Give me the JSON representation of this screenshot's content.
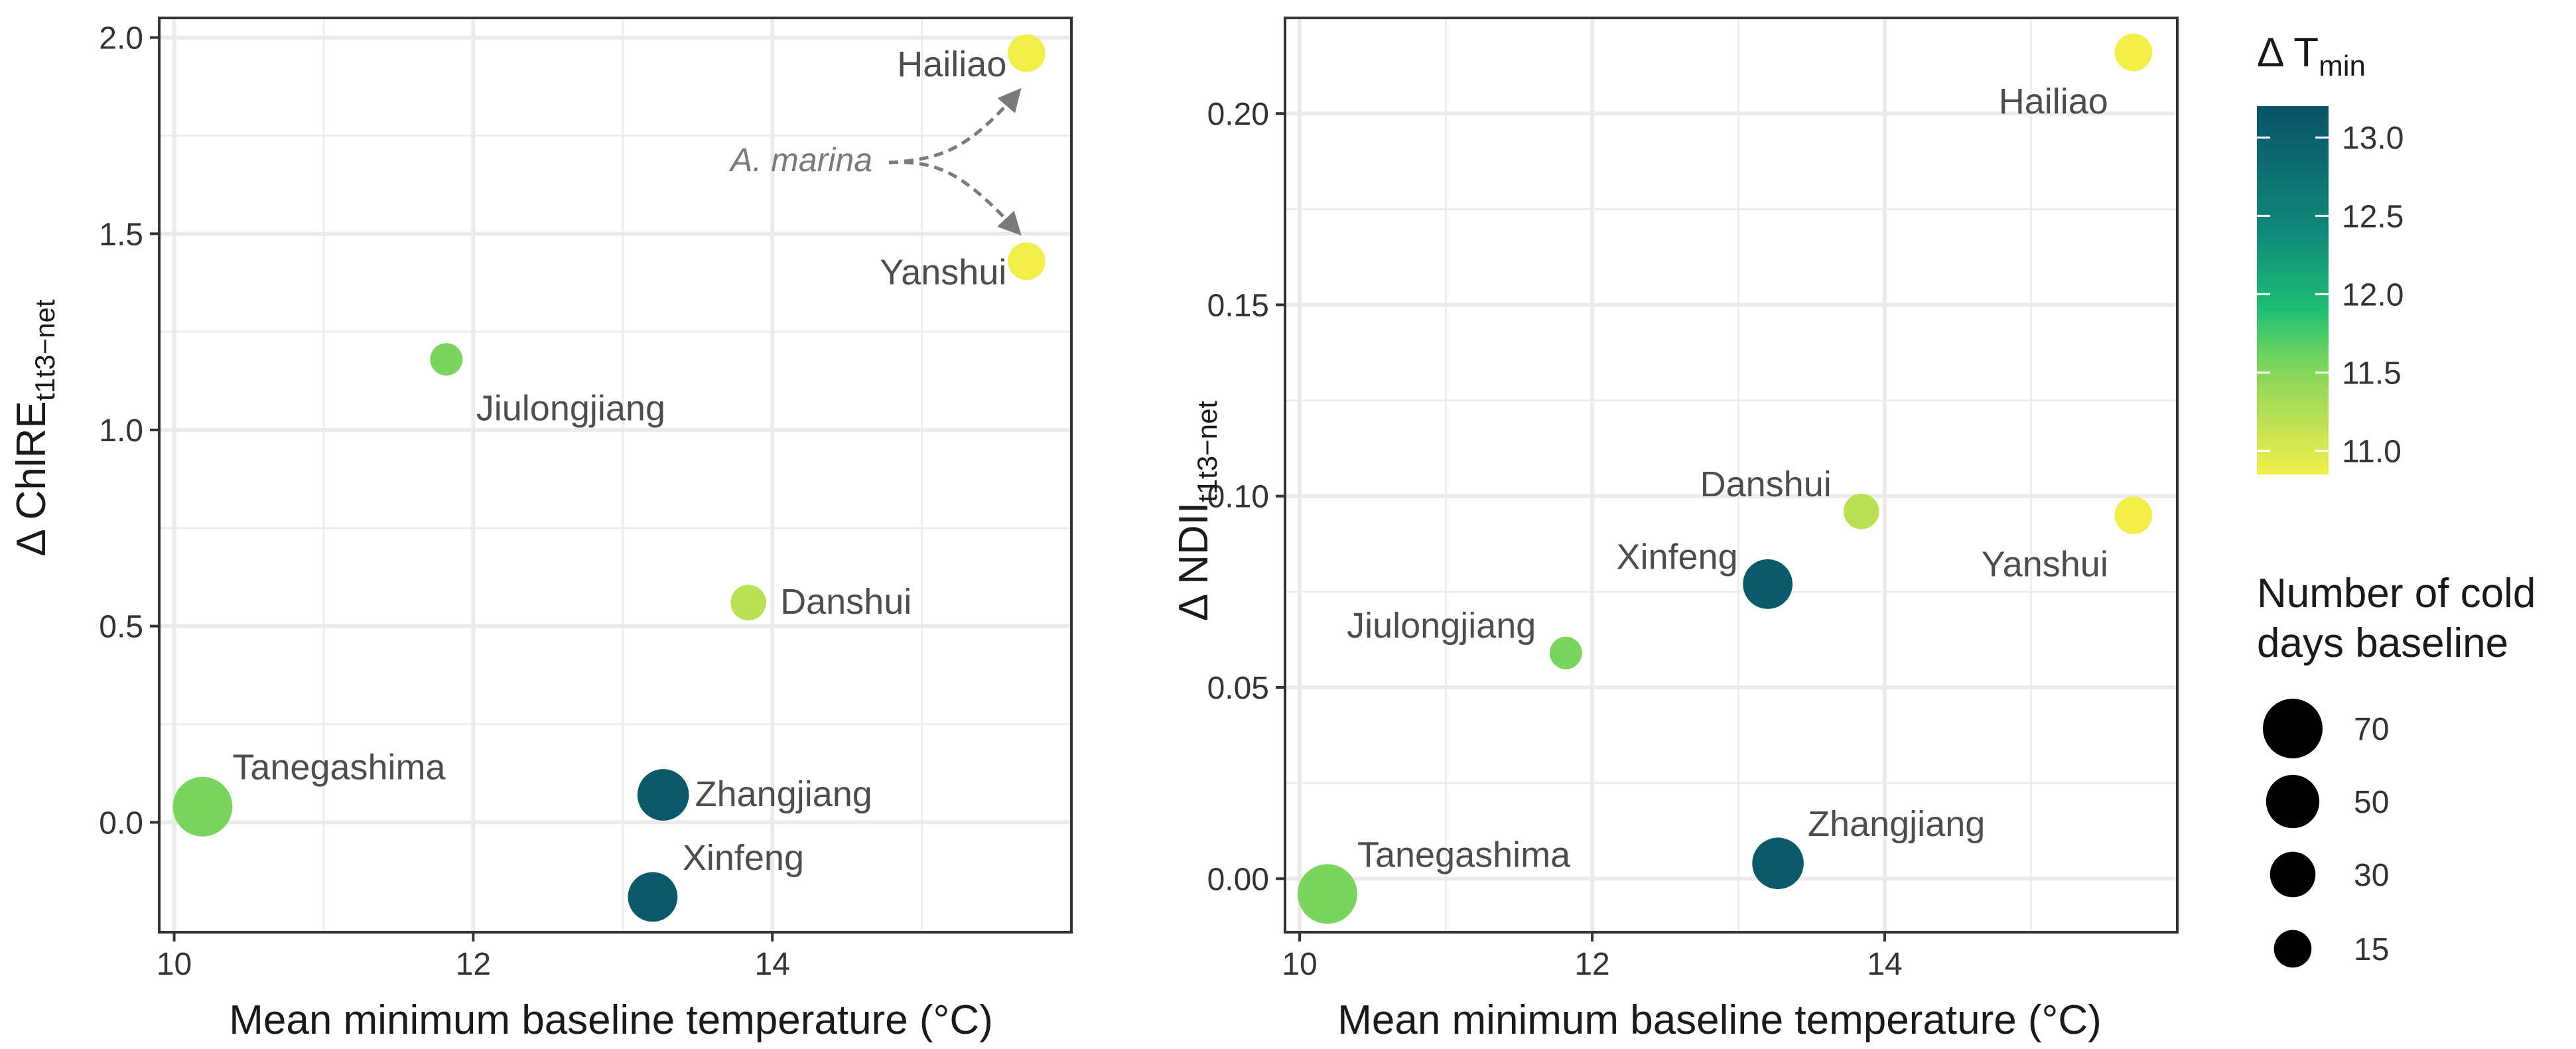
{
  "chart_data": [
    {
      "type": "scatter",
      "panel": "left",
      "xlabel": "Mean minimum baseline temperature (°C)",
      "ylabel": "Δ ChlRE",
      "ylabel_subscript": "t1t3−net",
      "xlim": [
        9.9,
        16.0
      ],
      "ylim": [
        -0.28,
        2.05
      ],
      "xticks": [
        10,
        12,
        14
      ],
      "yticks": [
        0.0,
        0.5,
        1.0,
        1.5,
        2.0
      ],
      "ytick_labels": [
        "0.0",
        "0.5",
        "1.0",
        "1.5",
        "2.0"
      ],
      "grid": true,
      "points": [
        {
          "site": "Hailiao",
          "x": 15.7,
          "y": 1.96,
          "cold_days": 15,
          "delta_tmin": 10.85,
          "label_pos": "left"
        },
        {
          "site": "Yanshui",
          "x": 15.7,
          "y": 1.43,
          "cold_days": 15,
          "delta_tmin": 10.85,
          "label_pos": "left"
        },
        {
          "site": "Jiulongjiang",
          "x": 11.82,
          "y": 1.18,
          "cold_days": 8,
          "delta_tmin": 11.55,
          "label_pos": "below-right"
        },
        {
          "site": "Danshui",
          "x": 13.84,
          "y": 0.56,
          "cold_days": 12,
          "delta_tmin": 11.2,
          "label_pos": "right"
        },
        {
          "site": "Tanegashima",
          "x": 10.19,
          "y": 0.04,
          "cold_days": 70,
          "delta_tmin": 11.55,
          "label_pos": "above-right"
        },
        {
          "site": "Zhangjiang",
          "x": 13.27,
          "y": 0.07,
          "cold_days": 45,
          "delta_tmin": 13.1,
          "label_pos": "right"
        },
        {
          "site": "Xinfeng",
          "x": 13.2,
          "y": -0.19,
          "cold_days": 40,
          "delta_tmin": 13.1,
          "label_pos": "above-right"
        }
      ],
      "annotation": {
        "text": "A. marina",
        "arrows_to": [
          "Hailiao",
          "Yanshui"
        ]
      }
    },
    {
      "type": "scatter",
      "panel": "right",
      "xlabel": "Mean minimum baseline temperature (°C)",
      "ylabel": "Δ NDII",
      "ylabel_subscript": "t1t3−net",
      "xlim": [
        9.9,
        16.0
      ],
      "ylim": [
        -0.014,
        0.225
      ],
      "xticks": [
        10,
        12,
        14
      ],
      "yticks": [
        0.0,
        0.05,
        0.1,
        0.15,
        0.2
      ],
      "ytick_labels": [
        "0.00",
        "0.05",
        "0.10",
        "0.15",
        "0.20"
      ],
      "grid": true,
      "points": [
        {
          "site": "Hailiao",
          "x": 15.7,
          "y": 0.216,
          "cold_days": 15,
          "delta_tmin": 10.85,
          "label_pos": "below-left"
        },
        {
          "site": "Yanshui",
          "x": 15.7,
          "y": 0.095,
          "cold_days": 15,
          "delta_tmin": 10.85,
          "label_pos": "below-left"
        },
        {
          "site": "Danshui",
          "x": 13.84,
          "y": 0.096,
          "cold_days": 12,
          "delta_tmin": 11.2,
          "label_pos": "above-left"
        },
        {
          "site": "Xinfeng",
          "x": 13.2,
          "y": 0.077,
          "cold_days": 40,
          "delta_tmin": 13.1,
          "label_pos": "above-left"
        },
        {
          "site": "Jiulongjiang",
          "x": 11.82,
          "y": 0.059,
          "cold_days": 8,
          "delta_tmin": 11.55,
          "label_pos": "above-left"
        },
        {
          "site": "Tanegashima",
          "x": 10.19,
          "y": -0.004,
          "cold_days": 70,
          "delta_tmin": 11.55,
          "label_pos": "above-right"
        },
        {
          "site": "Zhangjiang",
          "x": 13.27,
          "y": 0.004,
          "cold_days": 45,
          "delta_tmin": 13.1,
          "label_pos": "above-right"
        }
      ]
    }
  ],
  "legend": {
    "color_title": "Δ T",
    "color_title_subscript": "min",
    "color_range": [
      10.85,
      13.2
    ],
    "color_ticks": [
      13.0,
      12.5,
      12.0,
      11.5,
      11.0
    ],
    "color_tick_labels": [
      "13.0",
      "12.5",
      "12.0",
      "11.5",
      "11.0"
    ],
    "color_stops": [
      {
        "value": 10.85,
        "color": "#f2ee4a"
      },
      {
        "value": 11.4,
        "color": "#9ad95a"
      },
      {
        "value": 11.6,
        "color": "#6fd35e"
      },
      {
        "value": 11.9,
        "color": "#1dbf74"
      },
      {
        "value": 12.4,
        "color": "#10897a"
      },
      {
        "value": 13.2,
        "color": "#0a5268"
      }
    ],
    "size_title_lines": [
      "Number of cold",
      "days baseline"
    ],
    "size_values": [
      70,
      50,
      30,
      15
    ],
    "size_labels": [
      "70",
      "50",
      "30",
      "15"
    ]
  },
  "colors": {
    "text": "#333333",
    "grid": "#ebebeb",
    "annotation": "#7a7a7a",
    "label": "#4d4d4d"
  }
}
